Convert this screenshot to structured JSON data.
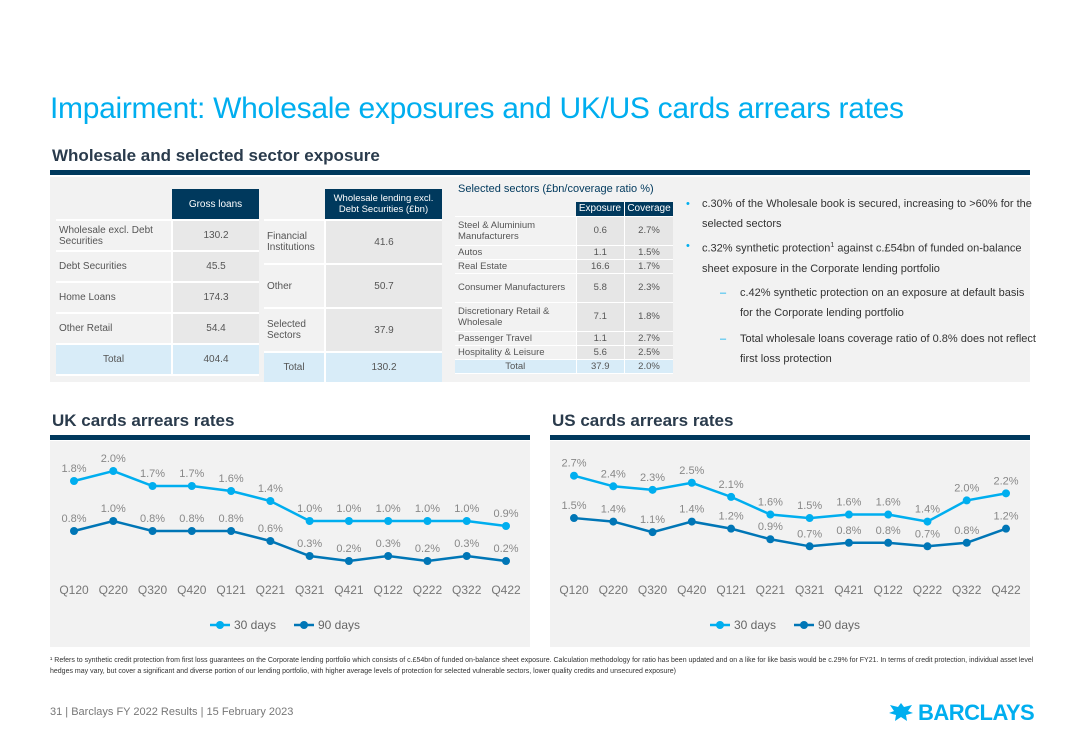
{
  "title": "Impairment: Wholesale exposures and UK/US cards arrears rates",
  "subtitle": "Wholesale and selected sector exposure",
  "table1": {
    "header": "Gross loans",
    "rows": [
      {
        "label": "Wholesale excl. Debt Securities",
        "value": "130.2"
      },
      {
        "label": "Debt Securities",
        "value": "45.5"
      },
      {
        "label": "Home Loans",
        "value": "174.3"
      },
      {
        "label": "Other Retail",
        "value": "54.4"
      }
    ],
    "total_label": "Total",
    "total_value": "404.4"
  },
  "table2": {
    "header": "Wholesale lending excl. Debt Securities (£bn)",
    "rows": [
      {
        "label": "Financial Institutions",
        "value": "41.6"
      },
      {
        "label": "Other",
        "value": "50.7"
      },
      {
        "label": "Selected Sectors",
        "value": "37.9"
      }
    ],
    "total_label": "Total",
    "total_value": "130.2"
  },
  "table3": {
    "title": "Selected sectors (£bn/coverage ratio %)",
    "col1": "Exposure",
    "col2": "Coverage",
    "rows": [
      {
        "label": "Steel & Aluminium Manufacturers",
        "exposure": "0.6",
        "coverage": "2.7%"
      },
      {
        "label": "Autos",
        "exposure": "1.1",
        "coverage": "1.5%"
      },
      {
        "label": "Real Estate",
        "exposure": "16.6",
        "coverage": "1.7%"
      },
      {
        "label": "Consumer Manufacturers",
        "exposure": "5.8",
        "coverage": "2.3%"
      },
      {
        "label": "Discretionary Retail & Wholesale",
        "exposure": "7.1",
        "coverage": "1.8%"
      },
      {
        "label": "Passenger Travel",
        "exposure": "1.1",
        "coverage": "2.7%"
      },
      {
        "label": "Hospitality & Leisure",
        "exposure": "5.6",
        "coverage": "2.5%"
      }
    ],
    "total_label": "Total",
    "total_exposure": "37.9",
    "total_coverage": "2.0%"
  },
  "bullets": {
    "b1": "c.30% of the Wholesale book is secured, increasing to >60% for the selected sectors",
    "b2_pre": "c.32% synthetic protection",
    "b2_sup": "1",
    "b2_post": " against c.£54bn of funded on-balance sheet exposure in the Corporate lending portfolio",
    "s1": "c.42% synthetic protection on an exposure at default basis for the Corporate lending portfolio",
    "s2": "Total wholesale loans coverage ratio of 0.8% does not reflect first loss protection"
  },
  "chart_data": [
    {
      "type": "line",
      "title": "UK cards arrears rates",
      "categories": [
        "Q120",
        "Q220",
        "Q320",
        "Q420",
        "Q121",
        "Q221",
        "Q321",
        "Q421",
        "Q122",
        "Q222",
        "Q322",
        "Q422"
      ],
      "series": [
        {
          "name": "30 days",
          "color": "#00AEEF",
          "values": [
            1.8,
            2.0,
            1.7,
            1.7,
            1.6,
            1.4,
            1.0,
            1.0,
            1.0,
            1.0,
            1.0,
            0.9
          ]
        },
        {
          "name": "90 days",
          "color": "#0076B6",
          "values": [
            0.8,
            1.0,
            0.8,
            0.8,
            0.8,
            0.6,
            0.3,
            0.2,
            0.3,
            0.2,
            0.3,
            0.2
          ]
        }
      ],
      "ylim": [
        0,
        2.4
      ]
    },
    {
      "type": "line",
      "title": "US cards arrears rates",
      "categories": [
        "Q120",
        "Q220",
        "Q320",
        "Q420",
        "Q121",
        "Q221",
        "Q321",
        "Q421",
        "Q122",
        "Q222",
        "Q322",
        "Q422"
      ],
      "series": [
        {
          "name": "30 days",
          "color": "#00AEEF",
          "values": [
            2.7,
            2.4,
            2.3,
            2.5,
            2.1,
            1.6,
            1.5,
            1.6,
            1.6,
            1.4,
            2.0,
            2.2
          ]
        },
        {
          "name": "90 days",
          "color": "#0076B6",
          "values": [
            1.5,
            1.4,
            1.1,
            1.4,
            1.2,
            0.9,
            0.7,
            0.8,
            0.8,
            0.7,
            0.8,
            1.2
          ]
        }
      ],
      "ylim": [
        0,
        3.4
      ]
    }
  ],
  "footnote": "¹ Refers to synthetic credit protection from first loss guarantees on the Corporate lending portfolio which consists of c.£54bn of funded on-balance sheet exposure. Calculation methodology for ratio has been updated and on a like for like basis would be c.29% for FY21. In terms of credit protection, individual asset level hedges may vary, but cover a significant and diverse portion of our lending portfolio, with higher average levels of protection for selected vulnerable sectors, lower quality credits and unsecured exposure)",
  "footer": "31 | Barclays FY 2022 Results | 15 February 2023",
  "logo_text": "BARCLAYS"
}
